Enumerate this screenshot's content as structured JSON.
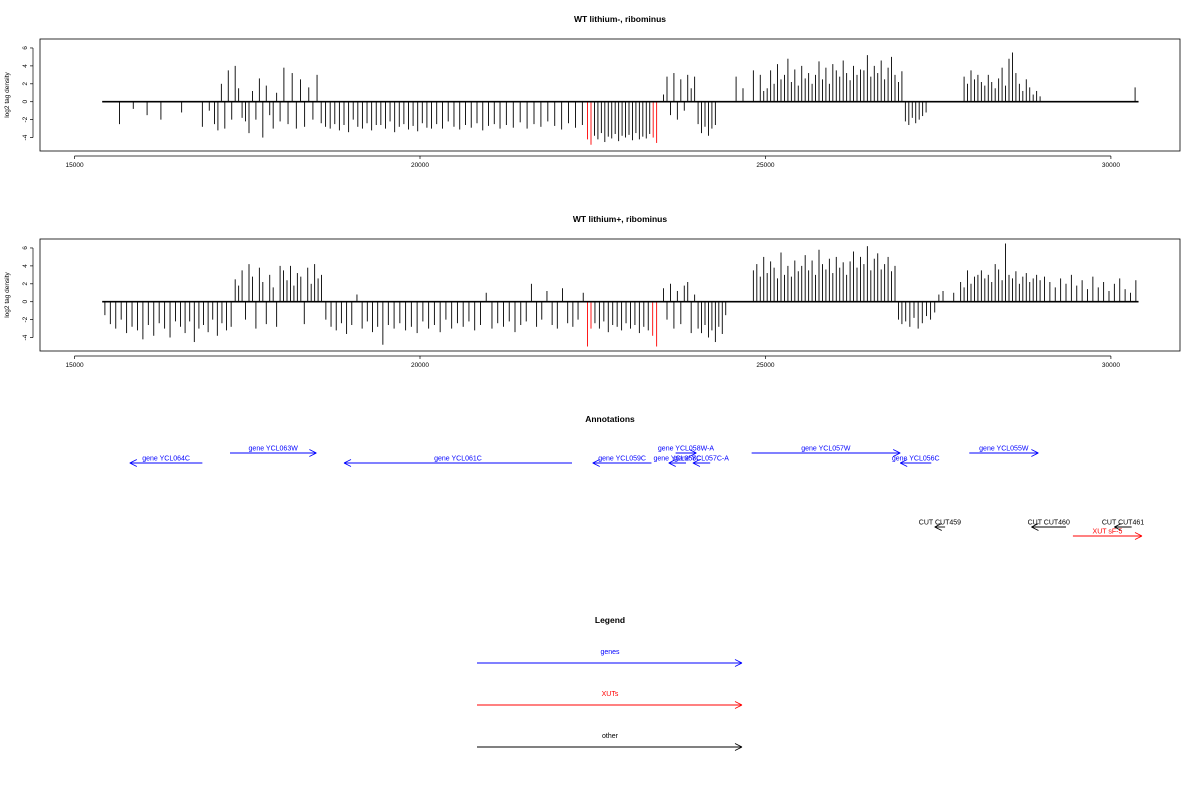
{
  "chart_data": [
    {
      "type": "bar",
      "title": "WT lithium-, ribominus",
      "ylabel": "log2 tag density",
      "xlabel": "",
      "xlim": [
        14500,
        31000
      ],
      "ylim": [
        -5.5,
        7
      ],
      "x_ticks": [
        15000,
        20000,
        25000,
        30000
      ],
      "y_ticks": [
        -4,
        -2,
        0,
        2,
        4,
        6
      ],
      "baseline": [
        15400,
        30400
      ],
      "colors": {
        "default": "#000000",
        "highlight": "#ff0000"
      },
      "highlight_x": [
        22450,
        23400
      ],
      "bins": [
        {
          "from": 15400,
          "to": 16000,
          "values": [
            0,
            0,
            -2.5,
            0,
            -0.8,
            0
          ]
        },
        {
          "from": 16000,
          "to": 17000,
          "values": [
            -1.5,
            0,
            -2.0,
            0,
            0,
            -1.2,
            0,
            0,
            -2.8,
            -1.0
          ]
        },
        {
          "from": 17000,
          "to": 17500,
          "values": [
            -2.5,
            -3.2,
            2.0,
            -3.0,
            3.5,
            -2.0,
            4.0,
            1.5,
            -1.8,
            -2.2
          ]
        },
        {
          "from": 17500,
          "to": 18000,
          "values": [
            -3.5,
            1.2,
            -2.0,
            2.6,
            -4.0,
            1.8,
            -1.5,
            -3.0,
            1.0,
            -2.2
          ]
        },
        {
          "from": 18000,
          "to": 18600,
          "values": [
            3.8,
            -2.5,
            3.2,
            -3.0,
            2.5,
            -2.8,
            1.6,
            -2.0,
            3.0,
            -2.4
          ]
        },
        {
          "from": 18600,
          "to": 19400,
          "values": [
            -2.8,
            -3.0,
            -2.5,
            -3.2,
            -2.6,
            -3.4,
            -2.0,
            -2.8,
            -3.0,
            -2.4,
            -3.2,
            -2.6
          ]
        },
        {
          "from": 19400,
          "to": 20200,
          "values": [
            -2.6,
            -3.0,
            -2.2,
            -3.4,
            -2.8,
            -2.5,
            -3.1,
            -2.7,
            -3.3,
            -2.4,
            -2.9,
            -3.0
          ]
        },
        {
          "from": 20200,
          "to": 21200,
          "values": [
            -2.5,
            -3.0,
            -2.2,
            -2.8,
            -3.1,
            -2.6,
            -2.9,
            -2.4,
            -3.2,
            -2.7,
            -2.5,
            -3.0
          ]
        },
        {
          "from": 21200,
          "to": 22400,
          "values": [
            -2.6,
            -2.9,
            -2.3,
            -3.0,
            -2.5,
            -2.8,
            -2.2,
            -2.7,
            -3.1,
            -2.4,
            -2.9,
            -2.6
          ]
        },
        {
          "from": 22400,
          "to": 22500,
          "values": [
            -4.2,
            -4.8
          ]
        },
        {
          "from": 22500,
          "to": 23400,
          "values": [
            -3.8,
            -4.2,
            -3.5,
            -4.5,
            -3.9,
            -4.1,
            -3.6,
            -4.4,
            -3.8,
            -4.0,
            -3.7,
            -4.3,
            -3.5,
            -4.2,
            -3.9,
            -4.1,
            -3.6,
            -4.0
          ]
        },
        {
          "from": 23400,
          "to": 23450,
          "values": [
            -4.6
          ]
        },
        {
          "from": 23500,
          "to": 24000,
          "values": [
            0.8,
            2.8,
            -1.5,
            3.2,
            -2.0,
            2.5,
            -1.0,
            3.0,
            1.5,
            2.8
          ]
        },
        {
          "from": 24000,
          "to": 24500,
          "values": [
            -2.5,
            -3.5,
            -2.8,
            -3.8,
            -3.0,
            -2.6,
            0,
            0,
            0,
            0
          ]
        },
        {
          "from": 24500,
          "to": 25000,
          "values": [
            0,
            2.8,
            0,
            1.5,
            0,
            0,
            3.5,
            0,
            3.0,
            1.2
          ]
        },
        {
          "from": 25000,
          "to": 25700,
          "values": [
            1.5,
            3.5,
            2.0,
            4.2,
            2.5,
            3.0,
            4.8,
            2.2,
            3.6,
            1.8,
            4.0,
            2.6,
            3.2,
            2.0
          ]
        },
        {
          "from": 25700,
          "to": 26400,
          "values": [
            3.0,
            4.5,
            2.5,
            3.8,
            2.0,
            4.2,
            3.5,
            2.8,
            4.6,
            3.2,
            2.4,
            4.0,
            3.0,
            3.6
          ]
        },
        {
          "from": 26400,
          "to": 27000,
          "values": [
            3.5,
            5.2,
            2.8,
            4.0,
            3.2,
            4.6,
            2.5,
            3.8,
            5.0,
            3.0,
            2.2,
            3.4
          ]
        },
        {
          "from": 27000,
          "to": 27500,
          "values": [
            -2.2,
            -2.6,
            -1.8,
            -2.4,
            -2.0,
            -1.6,
            -1.2,
            0,
            0,
            0
          ]
        },
        {
          "from": 27500,
          "to": 28200,
          "values": [
            0,
            0,
            0,
            0,
            0,
            0,
            0,
            2.8,
            2.0,
            3.5,
            2.5,
            3.0,
            2.2,
            1.8
          ]
        },
        {
          "from": 28200,
          "to": 29000,
          "values": [
            3.0,
            2.2,
            1.5,
            2.6,
            3.8,
            1.8,
            4.8,
            5.5,
            3.2,
            2.0,
            1.2,
            2.5,
            1.6,
            0.8,
            1.2,
            0.6
          ]
        },
        {
          "from": 30300,
          "to": 30400,
          "values": [
            1.6
          ]
        }
      ]
    },
    {
      "type": "bar",
      "title": "WT lithium+, ribominus",
      "ylabel": "log2 tag density",
      "xlabel": "",
      "xlim": [
        14500,
        31000
      ],
      "ylim": [
        -5.5,
        7
      ],
      "x_ticks": [
        15000,
        20000,
        25000,
        30000
      ],
      "y_ticks": [
        -4,
        -2,
        0,
        2,
        4,
        6
      ],
      "baseline": [
        15400,
        30400
      ],
      "colors": {
        "default": "#000000",
        "highlight": "#ff0000"
      },
      "highlight_x": [
        22450,
        23400
      ],
      "bins": [
        {
          "from": 15400,
          "to": 16500,
          "values": [
            -1.5,
            -2.5,
            -3.0,
            -2.0,
            -3.5,
            -2.8,
            -3.2,
            -4.2,
            -2.6,
            -3.8,
            -2.4,
            -3.0,
            -4.0,
            -2.2
          ]
        },
        {
          "from": 16500,
          "to": 17300,
          "values": [
            -2.8,
            -3.5,
            -2.2,
            -4.5,
            -3.0,
            -2.6,
            -3.4,
            -2.0,
            -3.8,
            -2.4,
            -3.2,
            -2.8
          ]
        },
        {
          "from": 17300,
          "to": 18000,
          "values": [
            2.5,
            1.8,
            3.5,
            -2.0,
            4.2,
            2.8,
            -3.0,
            3.8,
            2.2,
            -2.5,
            3.0,
            1.6,
            -2.8,
            4.0
          ]
        },
        {
          "from": 18000,
          "to": 18600,
          "values": [
            3.5,
            2.4,
            4.0,
            1.8,
            3.2,
            2.8,
            -2.5,
            3.8,
            2.0,
            4.2,
            2.6,
            3.0
          ]
        },
        {
          "from": 18600,
          "to": 19500,
          "values": [
            -2.0,
            -2.8,
            -3.2,
            -2.4,
            -3.6,
            -2.6,
            0.8,
            -3.0,
            -2.2,
            -3.4,
            -2.8,
            -4.8
          ]
        },
        {
          "from": 19500,
          "to": 20500,
          "values": [
            -2.6,
            -3.0,
            -2.4,
            -3.2,
            -2.8,
            -3.5,
            -2.2,
            -3.0,
            -2.6,
            -3.4,
            -2.0,
            -3.0
          ]
        },
        {
          "from": 20500,
          "to": 21500,
          "values": [
            -2.4,
            -2.8,
            -2.2,
            -3.2,
            -2.6,
            1.0,
            -3.0,
            -2.4,
            -2.8,
            -2.2,
            -3.4,
            -2.6
          ]
        },
        {
          "from": 21500,
          "to": 22400,
          "values": [
            -2.2,
            2.0,
            -2.8,
            -2.0,
            1.2,
            -2.6,
            -3.0,
            1.5,
            -2.4,
            -2.8,
            -2.0,
            1.0
          ]
        },
        {
          "from": 22400,
          "to": 22500,
          "values": [
            -5.0,
            -3.0
          ]
        },
        {
          "from": 22500,
          "to": 23400,
          "values": [
            -2.4,
            -3.0,
            -2.2,
            -3.4,
            -2.6,
            -2.8,
            -3.2,
            -2.4,
            -3.0,
            -2.6,
            -3.5,
            -2.8,
            -3.2,
            -3.8
          ]
        },
        {
          "from": 23400,
          "to": 23450,
          "values": [
            -5.0
          ]
        },
        {
          "from": 23500,
          "to": 24000,
          "values": [
            1.5,
            -2.0,
            2.0,
            -3.0,
            1.2,
            -2.5,
            1.8,
            2.2,
            -3.5,
            0.8
          ]
        },
        {
          "from": 24000,
          "to": 24500,
          "values": [
            -3.0,
            -3.5,
            -2.6,
            -4.0,
            -3.2,
            -4.5,
            -2.8,
            -3.6,
            -1.5,
            0
          ]
        },
        {
          "from": 24800,
          "to": 25500,
          "values": [
            3.5,
            4.2,
            2.8,
            5.0,
            3.2,
            4.5,
            3.8,
            2.6,
            5.5,
            3.0,
            4.0,
            2.8,
            4.6,
            3.4
          ]
        },
        {
          "from": 25500,
          "to": 26200,
          "values": [
            4.0,
            5.2,
            3.5,
            4.6,
            3.0,
            5.8,
            4.2,
            3.6,
            4.8,
            3.2,
            5.0,
            3.8,
            4.4,
            3.0
          ]
        },
        {
          "from": 26200,
          "to": 27000,
          "values": [
            4.5,
            5.6,
            3.8,
            5.0,
            4.2,
            6.2,
            3.5,
            4.8,
            5.4,
            3.6,
            4.2,
            5.0,
            3.4,
            4.0,
            -2.0,
            -2.5
          ]
        },
        {
          "from": 27000,
          "to": 27600,
          "values": [
            -2.2,
            -2.8,
            -1.8,
            -3.0,
            -2.4,
            -1.6,
            -2.0,
            -1.2,
            0.8,
            1.2
          ]
        },
        {
          "from": 27600,
          "to": 28100,
          "values": [
            0,
            0,
            1.0,
            0,
            2.2,
            1.6,
            3.5,
            2.0,
            2.8,
            3.0
          ]
        },
        {
          "from": 28100,
          "to": 29000,
          "values": [
            3.5,
            2.6,
            3.0,
            2.2,
            4.2,
            3.6,
            2.4,
            6.5,
            3.0,
            2.6,
            3.4,
            2.0,
            2.8,
            3.2,
            2.2,
            2.6,
            3.0,
            2.4
          ]
        },
        {
          "from": 29000,
          "to": 30400,
          "values": [
            2.8,
            2.2,
            1.6,
            2.6,
            2.0,
            3.0,
            1.8,
            2.4,
            1.4,
            2.8,
            1.6,
            2.2,
            1.2,
            2.0,
            2.6,
            1.4,
            1.0,
            2.4
          ]
        }
      ]
    },
    {
      "type": "other",
      "title": "Annotations",
      "xlim": [
        14500,
        31000
      ],
      "features": [
        {
          "label": "gene YCL064C",
          "x1": 16850,
          "x2": 15800,
          "row": 1,
          "color": "#0000ff"
        },
        {
          "label": "gene YCL063W",
          "x1": 17250,
          "x2": 18500,
          "row": 0,
          "color": "#0000ff"
        },
        {
          "label": "gene YCL061C",
          "x1": 22200,
          "x2": 18900,
          "row": 1,
          "color": "#0000ff"
        },
        {
          "label": "gene YCL059C",
          "x1": 23350,
          "x2": 22500,
          "row": 1,
          "color": "#0000ff"
        },
        {
          "label": "gene YCL058W-A",
          "x1": 23700,
          "x2": 24000,
          "row": 0,
          "color": "#0000ff"
        },
        {
          "label": "gene YCL058C",
          "x1": 23850,
          "x2": 23600,
          "row": 1,
          "color": "#0000ff"
        },
        {
          "label": "gene YCL057C-A",
          "x1": 24200,
          "x2": 23950,
          "row": 1,
          "color": "#0000ff"
        },
        {
          "label": "gene YCL057W",
          "x1": 24800,
          "x2": 26950,
          "row": 0,
          "color": "#0000ff"
        },
        {
          "label": "gene YCL056C",
          "x1": 27400,
          "x2": 26950,
          "row": 1,
          "color": "#0000ff"
        },
        {
          "label": "gene YCL055W",
          "x1": 27950,
          "x2": 28950,
          "row": 0,
          "color": "#0000ff"
        },
        {
          "label": "CUT CUT459",
          "x1": 27600,
          "x2": 27450,
          "row": 3,
          "color": "#000000"
        },
        {
          "label": "CUT CUT460",
          "x1": 29350,
          "x2": 28850,
          "row": 3,
          "color": "#000000"
        },
        {
          "label": "CUT CUT461",
          "x1": 30300,
          "x2": 30050,
          "row": 3,
          "color": "#000000"
        },
        {
          "label": "XUT sF-5",
          "x1": 29450,
          "x2": 30450,
          "row": 4,
          "color": "#ff0000"
        }
      ]
    },
    {
      "type": "other",
      "title": "Legend",
      "entries": [
        {
          "label": "genes",
          "color": "#0000ff"
        },
        {
          "label": "XUTs",
          "color": "#ff0000"
        },
        {
          "label": "other",
          "color": "#000000"
        }
      ]
    }
  ]
}
